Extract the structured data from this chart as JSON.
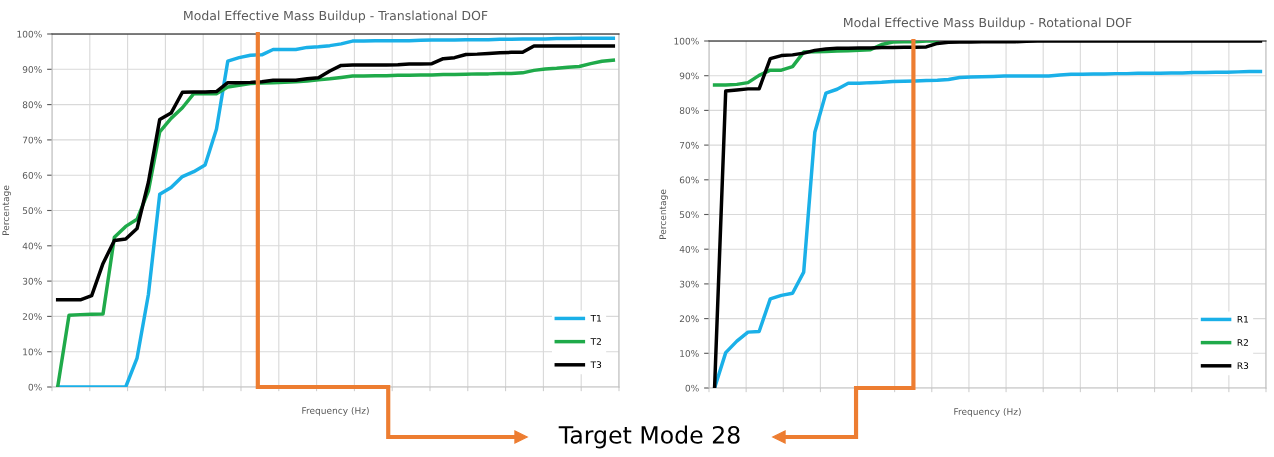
{
  "chart_data": [
    {
      "type": "line",
      "title": "Modal Effective Mass Buildup - Translational DOF",
      "xlabel": "Frequency (Hz)",
      "ylabel": "Percentage",
      "tick_labels": "y",
      "grid": true,
      "legend": "bottom right",
      "categories": [
        null,
        null,
        null,
        null,
        null,
        null,
        null,
        null,
        null,
        null,
        null,
        null,
        null,
        null,
        null,
        null,
        null,
        null,
        null,
        null,
        null,
        null,
        null,
        null,
        null,
        null,
        null,
        null,
        null,
        null,
        null,
        null,
        null,
        null,
        null,
        null,
        null,
        null,
        null,
        null,
        null,
        null,
        null,
        null,
        null,
        null,
        null,
        null,
        null,
        null
      ],
      "ylim": [
        0,
        100
      ],
      "yticks": [
        {
          "value": 0,
          "label": "0%"
        },
        {
          "value": 10,
          "label": "10%"
        },
        {
          "value": 20,
          "label": "20%"
        },
        {
          "value": 30,
          "label": "30%"
        },
        {
          "value": 40,
          "label": "40%"
        },
        {
          "value": 50,
          "label": "50%"
        },
        {
          "value": 60,
          "label": "60%"
        },
        {
          "value": 70,
          "label": "70%"
        },
        {
          "value": 80,
          "label": "80%"
        },
        {
          "value": 90,
          "label": "90%"
        },
        {
          "value": 100,
          "label": "100%"
        }
      ],
      "annotations": [
        "Target Mode 28"
      ],
      "series": [
        {
          "name": "T1",
          "color": "#1ab0e8",
          "values": [
            0,
            0,
            0,
            0,
            0,
            0,
            0,
            8.2,
            26.2,
            54.6,
            56.5,
            59.6,
            61.0,
            62.9,
            73,
            92.3,
            93.3,
            94,
            94.1,
            95.6,
            95.6,
            95.6,
            96.2,
            96.4,
            96.7,
            97.2,
            98,
            98,
            98.1,
            98.1,
            98.1,
            98.1,
            98.2,
            98.3,
            98.3,
            98.3,
            98.4,
            98.4,
            98.4,
            98.5,
            98.5,
            98.6,
            98.6,
            98.6,
            98.7,
            98.7,
            98.8,
            98.8,
            98.8,
            98.8
          ]
        },
        {
          "name": "T2",
          "color": "#1faa4a",
          "values": [
            0,
            20.3,
            20.5,
            20.6,
            20.7,
            42.4,
            45.5,
            47.5,
            55.5,
            72.3,
            76.1,
            79.1,
            83.1,
            83.1,
            83.1,
            85,
            85.5,
            86,
            86.1,
            86.2,
            86.3,
            86.5,
            86.7,
            87,
            87.3,
            87.7,
            88.1,
            88.1,
            88.2,
            88.2,
            88.3,
            88.3,
            88.4,
            88.4,
            88.5,
            88.5,
            88.6,
            88.7,
            88.7,
            88.8,
            88.8,
            89.0,
            89.7,
            90.1,
            90.3,
            90.6,
            90.8,
            91.6,
            92.3,
            92.6
          ]
        },
        {
          "name": "T3",
          "color": "#000000",
          "values": [
            24.7,
            24.7,
            24.7,
            25.9,
            35,
            41.5,
            41.9,
            44.9,
            58,
            75.8,
            77.6,
            83.5,
            83.6,
            83.6,
            83.7,
            86.2,
            86.2,
            86.3,
            86.5,
            86.9,
            86.9,
            86.9,
            87.3,
            87.6,
            89.5,
            91.1,
            91.2,
            91.2,
            91.2,
            91.2,
            91.3,
            91.5,
            91.5,
            91.6,
            93.0,
            93.3,
            94.2,
            94.3,
            94.5,
            94.7,
            94.8,
            94.8,
            96.6,
            96.6,
            96.6,
            96.6,
            96.6,
            96.6,
            96.6,
            96.6
          ]
        }
      ]
    },
    {
      "type": "line",
      "title": "Modal Effective Mass Buildup - Rotational DOF",
      "xlabel": "Frequency (Hz)",
      "ylabel": "Percentage",
      "tick_labels": "y",
      "grid": true,
      "legend": "bottom right",
      "categories": [
        null,
        null,
        null,
        null,
        null,
        null,
        null,
        null,
        null,
        null,
        null,
        null,
        null,
        null,
        null,
        null,
        null,
        null,
        null,
        null,
        null,
        null,
        null,
        null,
        null,
        null,
        null,
        null,
        null,
        null,
        null,
        null,
        null,
        null,
        null,
        null,
        null,
        null,
        null,
        null,
        null,
        null,
        null,
        null,
        null,
        null,
        null,
        null,
        null,
        null
      ],
      "ylim": [
        0,
        100
      ],
      "yticks": [
        {
          "value": 0,
          "label": "0%"
        },
        {
          "value": 10,
          "label": "10%"
        },
        {
          "value": 20,
          "label": "20%"
        },
        {
          "value": 30,
          "label": "30%"
        },
        {
          "value": 40,
          "label": "40%"
        },
        {
          "value": 50,
          "label": "50%"
        },
        {
          "value": 60,
          "label": "60%"
        },
        {
          "value": 70,
          "label": "70%"
        },
        {
          "value": 80,
          "label": "80%"
        },
        {
          "value": 90,
          "label": "90%"
        },
        {
          "value": 100,
          "label": "100%"
        }
      ],
      "series": [
        {
          "name": "R1",
          "color": "#1ab0e8",
          "values": [
            0,
            10.2,
            13.5,
            16.1,
            16.3,
            25.7,
            26.7,
            27.3,
            33.4,
            73.7,
            85,
            86.1,
            87.8,
            87.8,
            88,
            88.1,
            88.3,
            88.4,
            88.5,
            88.6,
            88.7,
            88.9,
            89.5,
            89.6,
            89.7,
            89.8,
            89.9,
            89.9,
            89.9,
            89.9,
            89.9,
            90.2,
            90.4,
            90.4,
            90.5,
            90.5,
            90.6,
            90.6,
            90.7,
            90.7,
            90.7,
            90.8,
            90.8,
            90.9,
            90.9,
            91,
            91,
            91.1,
            91.2,
            91.2
          ]
        },
        {
          "name": "R2",
          "color": "#1faa4a",
          "values": [
            87.3,
            87.3,
            87.5,
            88,
            90.1,
            91.6,
            91.6,
            92.6,
            96.8,
            96.9,
            97.0,
            97.1,
            97.2,
            97.3,
            97.5,
            99,
            99.7,
            99.8,
            99.8,
            100,
            100,
            null,
            null,
            null,
            null,
            null,
            null,
            null,
            null,
            null,
            null,
            null,
            null,
            null,
            null,
            null,
            null,
            null,
            null,
            null,
            null,
            null,
            null,
            null,
            null,
            null,
            null,
            null,
            null,
            null
          ]
        },
        {
          "name": "R3",
          "color": "#000000",
          "values": [
            0,
            85.6,
            85.9,
            86.2,
            86.2,
            94.9,
            95.8,
            96,
            96.5,
            97.3,
            97.7,
            97.9,
            97.9,
            98,
            98,
            98.1,
            98.1,
            98.2,
            98.2,
            98.3,
            99.3,
            99.6,
            99.7,
            99.7,
            99.8,
            99.8,
            99.8,
            99.8,
            99.9,
            100,
            100,
            100,
            100,
            100,
            100,
            100,
            100,
            100,
            100,
            100,
            100,
            100,
            100,
            100,
            100,
            100,
            100,
            100,
            100,
            100
          ]
        }
      ]
    }
  ]
}
